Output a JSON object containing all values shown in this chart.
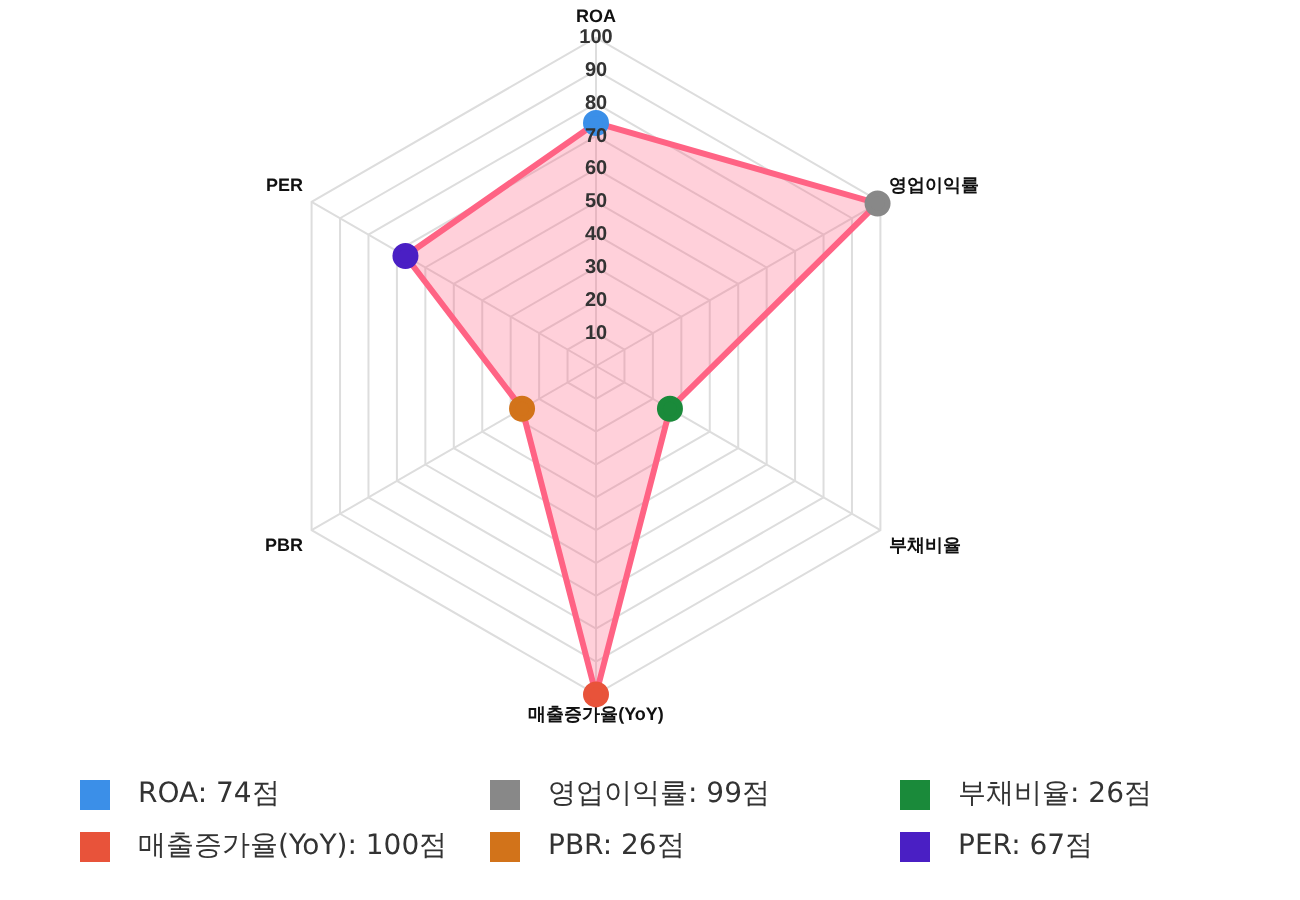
{
  "chart_data": {
    "type": "radar",
    "categories": [
      "ROA",
      "영업이익률",
      "부채비율",
      "매출증가율(YoY)",
      "PBR",
      "PER"
    ],
    "series": [
      {
        "color": "#ff6384",
        "colors": [
          "#3b8fe8",
          "#888888",
          "#1a8a3a",
          "#e8533a",
          "#d2731a",
          "#4a1fc4"
        ],
        "values": [
          74,
          99,
          26,
          100,
          26,
          67
        ]
      }
    ],
    "annotations": [
      "ROA: 74점",
      "영업이익률: 99점",
      "부채비율: 26점",
      "매출증가율(YoY): 100점",
      "PBR: 26점",
      "PER: 67점"
    ],
    "ylim": [
      0,
      100
    ],
    "yticks": [
      10,
      20,
      30,
      40,
      50,
      60,
      70,
      80,
      90,
      100
    ],
    "grid": true
  }
}
